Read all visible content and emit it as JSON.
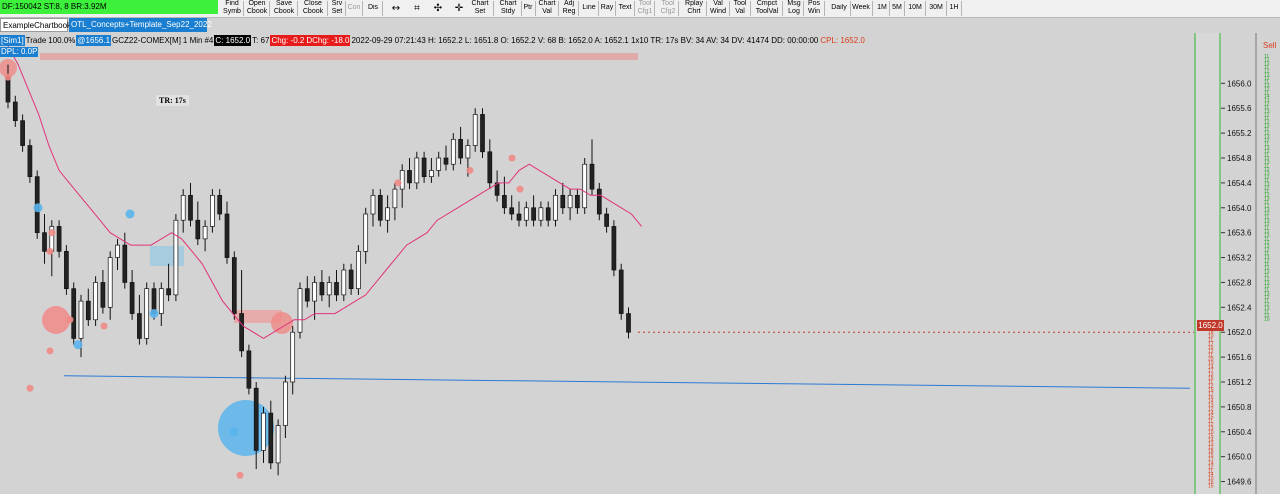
{
  "toolbar": {
    "status_text": "DF:150042  ST:8, 8  BR:3.92M",
    "buttons": [
      {
        "label": "Find\nSymb",
        "enabled": true
      },
      {
        "label": "Open\nCbook",
        "enabled": true
      },
      {
        "label": "Save\nCbook",
        "enabled": true
      },
      {
        "label": "Close\nCbook",
        "enabled": true
      },
      {
        "label": "Srv\nSet",
        "enabled": true
      },
      {
        "label": "Con",
        "enabled": false
      },
      {
        "label": "Dis",
        "enabled": true
      },
      {
        "label": "Chart\nSet",
        "enabled": true
      },
      {
        "label": "Chart\nStdy",
        "enabled": true
      },
      {
        "label": "Ptr",
        "enabled": true
      },
      {
        "label": "Chart\nVal",
        "enabled": true
      },
      {
        "label": "Adj\nReg",
        "enabled": true
      },
      {
        "label": "Line",
        "enabled": true
      },
      {
        "label": "Ray",
        "enabled": true
      },
      {
        "label": "Text",
        "enabled": true
      },
      {
        "label": "Tool\nCfg1",
        "enabled": false
      },
      {
        "label": "Tool\nCfg2",
        "enabled": false
      },
      {
        "label": "Rplay\nChrt",
        "enabled": true
      },
      {
        "label": "Val\nWind",
        "enabled": true
      },
      {
        "label": "Tool\nVal",
        "enabled": true
      },
      {
        "label": "Cmpct\nToolVal",
        "enabled": true
      },
      {
        "label": "Msg\nLog",
        "enabled": true
      },
      {
        "label": "Pos\nWin",
        "enabled": true
      },
      {
        "label": "Daily",
        "enabled": true
      },
      {
        "label": "Week",
        "enabled": true
      },
      {
        "label": "1M",
        "enabled": true
      },
      {
        "label": "5M",
        "enabled": true
      },
      {
        "label": "10M",
        "enabled": true
      },
      {
        "label": "30M",
        "enabled": true
      },
      {
        "label": "1H",
        "enabled": true
      }
    ],
    "icons": [
      "crosshair-h-icon",
      "crosshair-box-icon",
      "crosshair-icon",
      "crosshair-plus-icon"
    ]
  },
  "tabs": [
    {
      "label": "ExampleChartbook",
      "active": false
    },
    {
      "label": "OTL_Concepts+Template_Sep22_2022",
      "active": true
    }
  ],
  "info": {
    "sym_tag": "[Sim1]",
    "trade": "Trade",
    "trade_pct": "100.0%",
    "trade_price": "@1656.1",
    "symbol": "GCZ22-COMEX[M]",
    "interval": "1 Min",
    "index": "#4",
    "close": "C: 1652.0",
    "ticks": "T: 67",
    "chg": "Chg: -0.2",
    "dchg": "DChg: -18.0",
    "ohlc": "2022-09-29 07:21:43 H: 1652.2 L: 1651.8 O: 1652.2 V: 68 B: 1652.0 A: 1652.1 1x10 TR: 17s BV: 34 AV: 34 DV: 41474 DD: 00:00:00",
    "cpl": "CPL: 1652.0"
  },
  "dpl_label": "DPL: 0.0P",
  "tr_label": "TR: 17s",
  "current_price": "1652.0",
  "sell_label": "Sell",
  "colors": {
    "up": "#ffffff",
    "down": "#222222",
    "ma": "#e0337a",
    "trend": "#2b7ad6",
    "buy_bubble": "#5ab4ec",
    "sell_bubble": "#f08a86",
    "price_line": "#c0392b"
  },
  "chart_data": {
    "type": "candlestick",
    "interval": "1 Min",
    "ylim": [
      1649.4,
      1656.6
    ],
    "y_ticks": [
      1656.0,
      1655.6,
      1655.2,
      1654.8,
      1654.4,
      1654.0,
      1653.6,
      1653.2,
      1652.8,
      1652.4,
      1652.0,
      1651.6,
      1651.2,
      1650.8,
      1650.4,
      1650.0,
      1649.6
    ],
    "ohlc": [
      [
        1656.1,
        1656.3,
        1655.6,
        1655.7
      ],
      [
        1655.7,
        1655.8,
        1655.3,
        1655.4
      ],
      [
        1655.4,
        1655.5,
        1654.9,
        1655.0
      ],
      [
        1655.0,
        1655.1,
        1654.4,
        1654.5
      ],
      [
        1654.5,
        1654.6,
        1653.5,
        1653.6
      ],
      [
        1653.6,
        1653.9,
        1653.1,
        1653.3
      ],
      [
        1653.3,
        1653.8,
        1652.9,
        1653.7
      ],
      [
        1653.7,
        1653.8,
        1653.2,
        1653.3
      ],
      [
        1653.3,
        1653.4,
        1652.6,
        1652.7
      ],
      [
        1652.7,
        1652.8,
        1651.8,
        1651.9
      ],
      [
        1651.9,
        1652.6,
        1651.6,
        1652.5
      ],
      [
        1652.5,
        1652.7,
        1652.1,
        1652.2
      ],
      [
        1652.2,
        1652.9,
        1652.1,
        1652.8
      ],
      [
        1652.8,
        1653.0,
        1652.3,
        1652.4
      ],
      [
        1652.4,
        1653.3,
        1652.2,
        1653.2
      ],
      [
        1653.2,
        1653.5,
        1653.0,
        1653.4
      ],
      [
        1653.4,
        1653.6,
        1652.7,
        1652.8
      ],
      [
        1652.8,
        1653.0,
        1652.2,
        1652.3
      ],
      [
        1652.3,
        1652.6,
        1651.8,
        1651.9
      ],
      [
        1651.9,
        1652.8,
        1651.8,
        1652.7
      ],
      [
        1652.7,
        1652.8,
        1652.2,
        1652.3
      ],
      [
        1652.3,
        1652.8,
        1652.1,
        1652.7
      ],
      [
        1652.7,
        1653.1,
        1652.5,
        1652.6
      ],
      [
        1652.6,
        1653.9,
        1652.5,
        1653.8
      ],
      [
        1653.8,
        1654.3,
        1653.6,
        1654.2
      ],
      [
        1654.2,
        1654.4,
        1653.7,
        1653.8
      ],
      [
        1653.8,
        1654.1,
        1653.4,
        1653.5
      ],
      [
        1653.5,
        1653.8,
        1653.3,
        1653.7
      ],
      [
        1653.7,
        1654.3,
        1653.6,
        1654.2
      ],
      [
        1654.2,
        1654.3,
        1653.8,
        1653.9
      ],
      [
        1653.9,
        1654.1,
        1653.1,
        1653.2
      ],
      [
        1653.2,
        1653.3,
        1652.2,
        1652.3
      ],
      [
        1652.3,
        1653.0,
        1651.6,
        1651.7
      ],
      [
        1651.7,
        1651.8,
        1651.0,
        1651.1
      ],
      [
        1651.1,
        1651.2,
        1649.8,
        1650.1
      ],
      [
        1650.1,
        1650.8,
        1649.9,
        1650.7
      ],
      [
        1650.7,
        1650.9,
        1649.8,
        1649.9
      ],
      [
        1649.9,
        1650.6,
        1649.7,
        1650.5
      ],
      [
        1650.5,
        1651.3,
        1650.3,
        1651.2
      ],
      [
        1651.2,
        1652.1,
        1651.0,
        1652.0
      ],
      [
        1652.0,
        1652.8,
        1651.9,
        1652.7
      ],
      [
        1652.7,
        1652.9,
        1652.4,
        1652.5
      ],
      [
        1652.5,
        1652.9,
        1652.2,
        1652.8
      ],
      [
        1652.8,
        1653.0,
        1652.5,
        1652.6
      ],
      [
        1652.6,
        1652.9,
        1652.4,
        1652.8
      ],
      [
        1652.8,
        1653.0,
        1652.5,
        1652.6
      ],
      [
        1652.6,
        1653.1,
        1652.5,
        1653.0
      ],
      [
        1653.0,
        1653.1,
        1652.6,
        1652.7
      ],
      [
        1652.7,
        1653.4,
        1652.6,
        1653.3
      ],
      [
        1653.3,
        1654.0,
        1653.1,
        1653.9
      ],
      [
        1653.9,
        1654.3,
        1653.7,
        1654.2
      ],
      [
        1654.2,
        1654.3,
        1653.7,
        1653.8
      ],
      [
        1653.8,
        1654.2,
        1653.6,
        1654.0
      ],
      [
        1654.0,
        1654.4,
        1653.8,
        1654.3
      ],
      [
        1654.3,
        1654.7,
        1654.0,
        1654.6
      ],
      [
        1654.6,
        1654.8,
        1654.3,
        1654.4
      ],
      [
        1654.4,
        1654.9,
        1654.3,
        1654.8
      ],
      [
        1654.8,
        1654.9,
        1654.4,
        1654.5
      ],
      [
        1654.5,
        1654.8,
        1654.4,
        1654.6
      ],
      [
        1654.6,
        1654.9,
        1654.5,
        1654.8
      ],
      [
        1654.8,
        1655.0,
        1654.6,
        1654.7
      ],
      [
        1654.7,
        1655.2,
        1654.6,
        1655.1
      ],
      [
        1655.1,
        1655.3,
        1654.7,
        1654.8
      ],
      [
        1654.8,
        1655.1,
        1654.5,
        1655.0
      ],
      [
        1655.0,
        1655.6,
        1654.9,
        1655.5
      ],
      [
        1655.5,
        1655.6,
        1654.8,
        1654.9
      ],
      [
        1654.9,
        1655.1,
        1654.3,
        1654.4
      ],
      [
        1654.4,
        1654.6,
        1654.1,
        1654.2
      ],
      [
        1654.2,
        1654.5,
        1653.9,
        1654.0
      ],
      [
        1654.0,
        1654.2,
        1653.8,
        1653.9
      ],
      [
        1653.9,
        1654.1,
        1653.7,
        1653.8
      ],
      [
        1653.8,
        1654.1,
        1653.7,
        1654.0
      ],
      [
        1654.0,
        1654.2,
        1653.7,
        1653.8
      ],
      [
        1653.8,
        1654.1,
        1653.7,
        1654.0
      ],
      [
        1654.0,
        1654.1,
        1653.7,
        1653.8
      ],
      [
        1653.8,
        1654.3,
        1653.7,
        1654.2
      ],
      [
        1654.2,
        1654.4,
        1653.9,
        1654.0
      ],
      [
        1654.0,
        1654.3,
        1653.8,
        1654.2
      ],
      [
        1654.2,
        1654.3,
        1653.9,
        1654.0
      ],
      [
        1654.0,
        1654.8,
        1653.9,
        1654.7
      ],
      [
        1654.7,
        1655.1,
        1654.2,
        1654.3
      ],
      [
        1654.3,
        1654.4,
        1653.8,
        1653.9
      ],
      [
        1653.9,
        1654.0,
        1653.6,
        1653.7
      ],
      [
        1653.7,
        1653.8,
        1652.9,
        1653.0
      ],
      [
        1653.0,
        1653.1,
        1652.2,
        1652.3
      ],
      [
        1652.3,
        1652.4,
        1651.9,
        1652.0
      ]
    ],
    "moving_average": [
      1656.6,
      1656.3,
      1655.9,
      1655.5,
      1655.0,
      1654.6,
      1654.4,
      1654.2,
      1654.0,
      1653.8,
      1653.6,
      1653.5,
      1653.4,
      1653.4,
      1653.4,
      1653.5,
      1653.6,
      1653.5,
      1653.3,
      1653.1,
      1652.8,
      1652.5,
      1652.3,
      1652.1,
      1652.0,
      1651.9,
      1652.0,
      1652.1,
      1652.2,
      1652.2,
      1652.3,
      1652.3,
      1652.3,
      1652.4,
      1652.5,
      1652.6,
      1652.8,
      1653.0,
      1653.2,
      1653.4,
      1653.5,
      1653.6,
      1653.8,
      1653.9,
      1654.0,
      1654.1,
      1654.2,
      1654.3,
      1654.4,
      1654.4,
      1654.6,
      1654.7,
      1654.6,
      1654.5,
      1654.4,
      1654.3,
      1654.3,
      1654.2,
      1654.2,
      1654.1,
      1654.0,
      1653.9,
      1653.7
    ],
    "trend_line": [
      [
        1651.3
      ],
      [
        1651.1
      ]
    ],
    "sell_marks": [
      1656.1,
      1653.6,
      1653.3,
      1652.2,
      1651.7,
      1652.1,
      1651.1,
      1649.7,
      1654.4,
      1654.8,
      1654.3,
      1654.6
    ],
    "buy_marks": [
      1654.0,
      1652.3,
      1651.8,
      1653.9,
      1650.4
    ],
    "profile_right": {
      "green_counts": [
        "11",
        "12",
        "13",
        "11",
        "12",
        "13",
        "12",
        "11",
        "13",
        "12",
        "11",
        "14",
        "13",
        "12",
        "11",
        "13",
        "12",
        "11",
        "12",
        "13",
        "11",
        "12",
        "13",
        "12",
        "11",
        "13",
        "12",
        "11",
        "12",
        "13",
        "11",
        "12",
        "13",
        "12",
        "11",
        "13",
        "12",
        "11",
        "12",
        "13",
        "11",
        "12",
        "13",
        "12",
        "11",
        "13",
        "12",
        "11",
        "12",
        "13",
        "11",
        "12",
        "13",
        "12",
        "11",
        "13",
        "12",
        "11",
        "12",
        "13",
        "11",
        "12",
        "13",
        "12",
        "11",
        "13",
        "12",
        "11",
        "12",
        "13",
        "11",
        "12",
        "10"
      ],
      "red_counts": [
        "1",
        "12",
        "16",
        "10",
        "11",
        "17",
        "15",
        "12",
        "11",
        "20",
        "10",
        "14",
        "17",
        "12",
        "15",
        "11",
        "12",
        "15",
        "17",
        "16",
        "14",
        "13",
        "12",
        "14",
        "15",
        "11",
        "12",
        "13",
        "10",
        "15",
        "14",
        "13",
        "12",
        "18",
        "15",
        "17",
        "14",
        "12",
        "11",
        "14",
        "10",
        "16",
        "15"
      ]
    }
  }
}
